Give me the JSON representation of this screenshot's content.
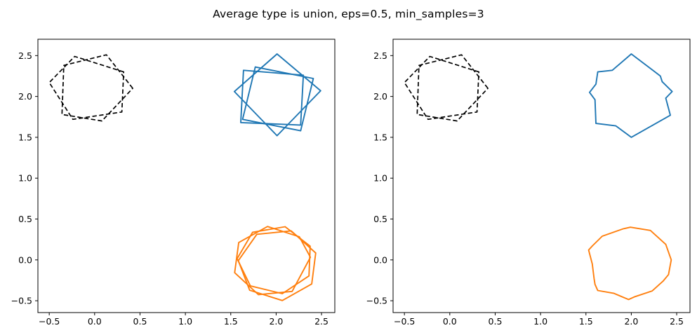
{
  "chart_data": {
    "type": "line",
    "title": "Average type is union, eps=0.5, min_samples=3",
    "grid": false,
    "legend": null,
    "xlim": [
      -0.625,
      2.646
    ],
    "ylim": [
      -0.65,
      2.7
    ],
    "xticks": {
      "values": [
        -0.5,
        0.0,
        0.5,
        1.0,
        1.5,
        2.0,
        2.5
      ],
      "labels": [
        "−0.5",
        "0.0",
        "0.5",
        "1.0",
        "1.5",
        "2.0",
        "2.5"
      ]
    },
    "yticks": {
      "values": [
        2.5,
        2.0,
        1.5,
        1.0,
        0.5,
        0.0,
        -0.5
      ],
      "labels": [
        "2.5",
        "2.0",
        "1.5",
        "1.0",
        "0.5",
        "0.0",
        "−0.5"
      ]
    },
    "colors": {
      "black": "#000000",
      "blue": "#1f77b4",
      "orange": "#ff7f0e",
      "spine": "#000000",
      "background": "#ffffff"
    },
    "panels": [
      {
        "name": "input-polygons",
        "shapes": [
          {
            "id": "noise-pentagon-1",
            "color": "black",
            "dashed": true,
            "points": [
              [
                0.42,
                2.1
              ],
              [
                0.13,
                2.51
              ],
              [
                -0.34,
                2.38
              ],
              [
                -0.36,
                1.78
              ],
              [
                0.08,
                1.7
              ]
            ]
          },
          {
            "id": "noise-pentagon-2",
            "color": "black",
            "dashed": true,
            "points": [
              [
                0.32,
                2.3
              ],
              [
                -0.22,
                2.49
              ],
              [
                -0.5,
                2.17
              ],
              [
                -0.24,
                1.72
              ],
              [
                0.3,
                1.81
              ]
            ]
          },
          {
            "id": "blue-square-1",
            "color": "blue",
            "dashed": false,
            "points": [
              [
                2.01,
                2.52
              ],
              [
                2.49,
                2.07
              ],
              [
                2.01,
                1.52
              ],
              [
                1.54,
                2.06
              ]
            ]
          },
          {
            "id": "blue-square-2",
            "color": "blue",
            "dashed": false,
            "points": [
              [
                1.64,
                2.32
              ],
              [
                2.3,
                2.26
              ],
              [
                2.27,
                1.65
              ],
              [
                1.61,
                1.68
              ]
            ]
          },
          {
            "id": "blue-square-3",
            "color": "blue",
            "dashed": false,
            "points": [
              [
                2.41,
                2.22
              ],
              [
                2.27,
                1.58
              ],
              [
                1.63,
                1.72
              ],
              [
                1.77,
                2.36
              ]
            ]
          },
          {
            "id": "orange-heptagon-1",
            "color": "orange",
            "dashed": false,
            "points": [
              [
                1.905,
                0.408
              ],
              [
                1.588,
                0.212
              ],
              [
                1.543,
                -0.157
              ],
              [
                1.805,
                -0.425
              ],
              [
                2.176,
                -0.386
              ],
              [
                2.377,
                0.032
              ],
              [
                2.256,
                0.282
              ]
            ]
          },
          {
            "id": "orange-heptagon-2",
            "color": "orange",
            "dashed": false,
            "points": [
              [
                1.787,
                0.313
              ],
              [
                1.583,
                -0.009
              ],
              [
                1.708,
                -0.371
              ],
              [
                2.068,
                -0.497
              ],
              [
                2.392,
                -0.295
              ],
              [
                2.436,
                0.084
              ],
              [
                2.166,
                0.355
              ]
            ]
          },
          {
            "id": "orange-heptagon-3",
            "color": "orange",
            "dashed": false,
            "points": [
              [
                2.099,
                0.406
              ],
              [
                1.741,
                0.338
              ],
              [
                1.57,
                0.015
              ],
              [
                1.716,
                -0.318
              ],
              [
                2.068,
                -0.413
              ],
              [
                2.362,
                -0.196
              ],
              [
                2.375,
                0.168
              ]
            ]
          }
        ]
      },
      {
        "name": "union-average",
        "shapes": [
          {
            "id": "noise-pentagon-1",
            "color": "black",
            "dashed": true,
            "points": [
              [
                0.42,
                2.1
              ],
              [
                0.13,
                2.51
              ],
              [
                -0.34,
                2.38
              ],
              [
                -0.36,
                1.78
              ],
              [
                0.08,
                1.7
              ]
            ]
          },
          {
            "id": "noise-pentagon-2",
            "color": "black",
            "dashed": true,
            "points": [
              [
                0.32,
                2.3
              ],
              [
                -0.22,
                2.49
              ],
              [
                -0.5,
                2.17
              ],
              [
                -0.24,
                1.72
              ],
              [
                0.3,
                1.81
              ]
            ]
          },
          {
            "id": "blue-union",
            "color": "blue",
            "dashed": false,
            "points": [
              [
                2.0,
                2.52
              ],
              [
                2.25,
                2.31
              ],
              [
                2.32,
                2.25
              ],
              [
                2.34,
                2.18
              ],
              [
                2.45,
                2.06
              ],
              [
                2.38,
                1.98
              ],
              [
                2.43,
                1.77
              ],
              [
                2.0,
                1.5
              ],
              [
                1.83,
                1.64
              ],
              [
                1.61,
                1.67
              ],
              [
                1.6,
                1.96
              ],
              [
                1.54,
                2.05
              ],
              [
                1.61,
                2.15
              ],
              [
                1.63,
                2.3
              ],
              [
                1.79,
                2.32
              ]
            ]
          },
          {
            "id": "orange-union",
            "color": "orange",
            "dashed": false,
            "points": [
              [
                1.91,
                0.38
              ],
              [
                1.99,
                0.4
              ],
              [
                2.21,
                0.36
              ],
              [
                2.38,
                0.19
              ],
              [
                2.44,
                0.0
              ],
              [
                2.41,
                -0.18
              ],
              [
                2.35,
                -0.26
              ],
              [
                2.23,
                -0.38
              ],
              [
                2.04,
                -0.45
              ],
              [
                1.97,
                -0.485
              ],
              [
                1.81,
                -0.41
              ],
              [
                1.63,
                -0.375
              ],
              [
                1.6,
                -0.3
              ],
              [
                1.59,
                -0.23
              ],
              [
                1.57,
                -0.05
              ],
              [
                1.53,
                0.12
              ],
              [
                1.57,
                0.17
              ],
              [
                1.68,
                0.29
              ]
            ]
          }
        ]
      }
    ]
  }
}
